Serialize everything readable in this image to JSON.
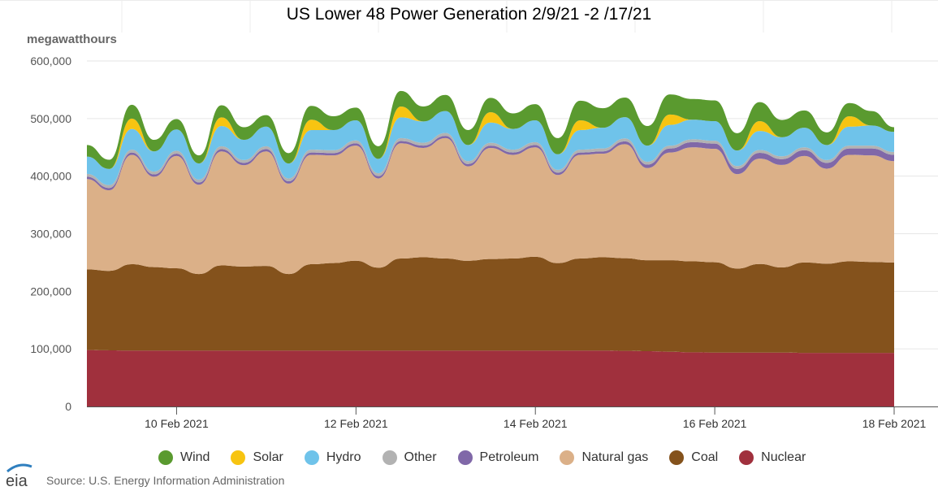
{
  "chart_data": {
    "type": "area",
    "stacked": true,
    "title": "US Lower 48 Power Generation 2/9/21 -2 /17/21",
    "ylabel": "megawatthours",
    "ylim": [
      0,
      600000
    ],
    "yticks": [
      0,
      100000,
      200000,
      300000,
      400000,
      500000,
      600000
    ],
    "ytick_labels": [
      "0",
      "100,000",
      "200,000",
      "300,000",
      "400,000",
      "500,000",
      "600,000"
    ],
    "xlim": [
      "2021-02-09T00:00",
      "2021-02-18T00:00"
    ],
    "xtick_labels": [
      {
        "x": "2021-02-10T00:00",
        "label": "10 Feb 2021"
      },
      {
        "x": "2021-02-12T00:00",
        "label": "12 Feb 2021"
      },
      {
        "x": "2021-02-14T00:00",
        "label": "14 Feb 2021"
      },
      {
        "x": "2021-02-16T00:00",
        "label": "16 Feb 2021"
      },
      {
        "x": "2021-02-18T00:00",
        "label": "18 Feb 2021"
      }
    ],
    "grid": "horizontal",
    "legend_position": "bottom",
    "x": [
      "2021-02-09T00:00",
      "2021-02-09T06:00",
      "2021-02-09T12:00",
      "2021-02-09T18:00",
      "2021-02-10T00:00",
      "2021-02-10T06:00",
      "2021-02-10T12:00",
      "2021-02-10T18:00",
      "2021-02-11T00:00",
      "2021-02-11T06:00",
      "2021-02-11T12:00",
      "2021-02-11T18:00",
      "2021-02-12T00:00",
      "2021-02-12T06:00",
      "2021-02-12T12:00",
      "2021-02-12T18:00",
      "2021-02-13T00:00",
      "2021-02-13T06:00",
      "2021-02-13T12:00",
      "2021-02-13T18:00",
      "2021-02-14T00:00",
      "2021-02-14T06:00",
      "2021-02-14T12:00",
      "2021-02-14T18:00",
      "2021-02-15T00:00",
      "2021-02-15T06:00",
      "2021-02-15T12:00",
      "2021-02-15T18:00",
      "2021-02-16T00:00",
      "2021-02-16T06:00",
      "2021-02-16T12:00",
      "2021-02-16T18:00",
      "2021-02-17T00:00",
      "2021-02-17T06:00",
      "2021-02-17T12:00",
      "2021-02-17T18:00",
      "2021-02-18T00:00"
    ],
    "series": [
      {
        "name": "Nuclear",
        "color": "#a0303d",
        "values": [
          98000,
          97500,
          97000,
          97000,
          97000,
          97000,
          97000,
          97000,
          97000,
          97000,
          97000,
          97000,
          97000,
          97000,
          97000,
          97000,
          97000,
          97000,
          97000,
          97000,
          97000,
          97000,
          97000,
          97000,
          96500,
          96000,
          95000,
          94000,
          93500,
          93500,
          93500,
          93500,
          93000,
          93000,
          93000,
          93000,
          93000
        ]
      },
      {
        "name": "Coal",
        "color": "#84521c",
        "values": [
          140000,
          138000,
          150000,
          145000,
          143000,
          133000,
          148000,
          146000,
          147000,
          133000,
          150000,
          152000,
          156000,
          144000,
          160000,
          162000,
          160000,
          156000,
          159000,
          160000,
          163000,
          152000,
          160000,
          162000,
          161000,
          158000,
          159000,
          158000,
          157000,
          146000,
          154000,
          148000,
          157000,
          155000,
          159000,
          158000,
          157000
        ]
      },
      {
        "name": "Natural gas",
        "color": "#dbb088",
        "values": [
          157000,
          140000,
          190000,
          157000,
          195000,
          155000,
          198000,
          176000,
          199000,
          157000,
          190000,
          187000,
          200000,
          155000,
          200000,
          190000,
          209000,
          164000,
          193000,
          180000,
          190000,
          153000,
          180000,
          180000,
          198000,
          160000,
          187000,
          198000,
          197000,
          164000,
          183000,
          178000,
          185000,
          165000,
          185000,
          185000,
          176000
        ]
      },
      {
        "name": "Petroleum",
        "color": "#8068a8",
        "values": [
          4000,
          4000,
          4000,
          4000,
          4000,
          4000,
          4000,
          4000,
          4000,
          4000,
          4000,
          4000,
          4000,
          4000,
          4000,
          4000,
          4000,
          4000,
          4000,
          4000,
          4000,
          4000,
          4000,
          4000,
          5000,
          6000,
          7000,
          9000,
          9000,
          9000,
          10000,
          10000,
          10000,
          10000,
          11000,
          12000,
          11000
        ]
      },
      {
        "name": "Other",
        "color": "#b2b2b2",
        "values": [
          5000,
          5000,
          5000,
          5000,
          5000,
          5000,
          5000,
          5000,
          5000,
          5000,
          5000,
          5000,
          5000,
          5000,
          5000,
          5000,
          5000,
          5000,
          5000,
          5000,
          5000,
          5000,
          5000,
          5000,
          5000,
          5000,
          5000,
          5000,
          5000,
          5000,
          5000,
          5000,
          5000,
          5000,
          5000,
          5000,
          5000
        ]
      },
      {
        "name": "Hydro",
        "color": "#6fc3ea",
        "values": [
          30000,
          28000,
          36000,
          35000,
          37000,
          28000,
          35000,
          35000,
          34000,
          26000,
          34000,
          35000,
          35000,
          25000,
          36000,
          37000,
          38000,
          28000,
          35000,
          36000,
          38000,
          27000,
          34000,
          36000,
          37000,
          28000,
          36000,
          34000,
          34000,
          27000,
          33000,
          33000,
          34000,
          26000,
          33000,
          35000,
          35000
        ]
      },
      {
        "name": "Solar",
        "color": "#f7c411",
        "values": [
          0,
          0,
          18000,
          0,
          0,
          0,
          15000,
          0,
          0,
          0,
          18000,
          0,
          0,
          0,
          19000,
          0,
          0,
          0,
          18000,
          0,
          0,
          0,
          17000,
          0,
          0,
          0,
          18000,
          0,
          0,
          0,
          17000,
          0,
          0,
          0,
          18000,
          0,
          0
        ]
      },
      {
        "name": "Wind",
        "color": "#5a9a2f",
        "values": [
          20000,
          16000,
          24000,
          20000,
          18000,
          14000,
          21000,
          22000,
          20000,
          18000,
          24000,
          24000,
          22000,
          22000,
          27000,
          26000,
          28000,
          26000,
          25000,
          27000,
          28000,
          28000,
          34000,
          34000,
          34000,
          34000,
          35000,
          36000,
          36000,
          30000,
          33000,
          30000,
          30000,
          22000,
          23000,
          25000,
          8000
        ]
      }
    ]
  },
  "source_text": "Source: U.S. Energy Information Administration"
}
